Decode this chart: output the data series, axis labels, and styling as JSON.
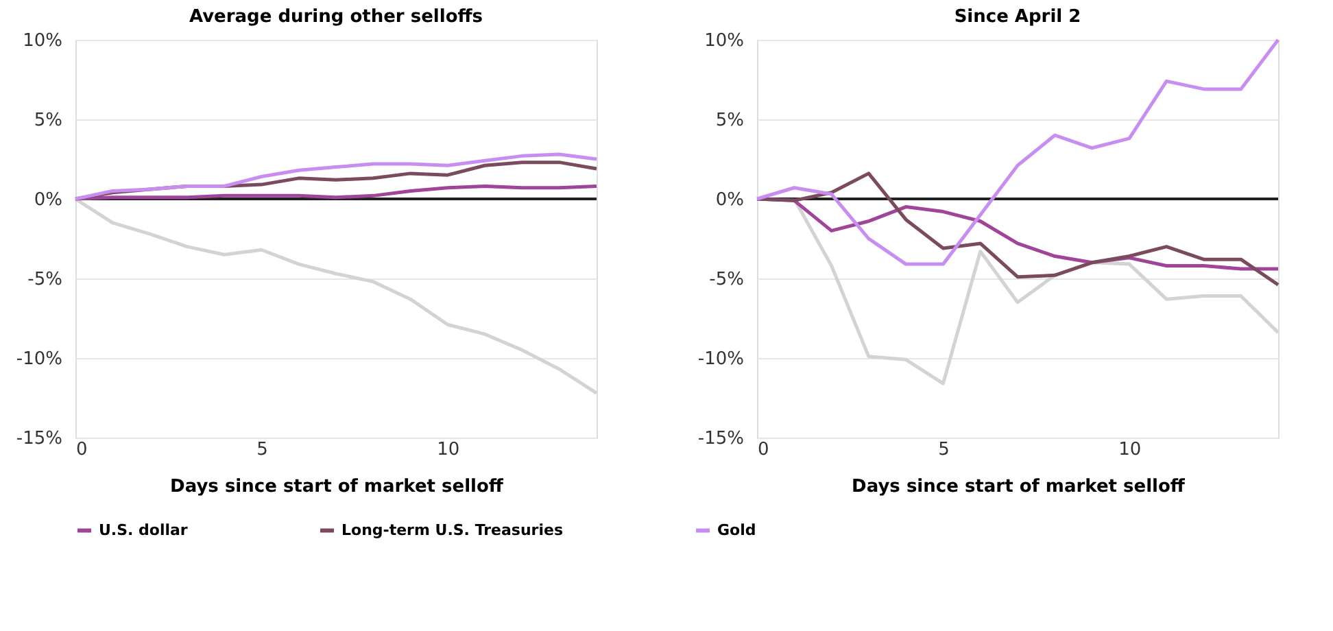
{
  "chart_data": [
    {
      "type": "line",
      "title": "Average during other selloffs",
      "xlabel": "Days since start of market selloff",
      "x": [
        0,
        1,
        2,
        3,
        4,
        5,
        6,
        7,
        8,
        9,
        10,
        11,
        12,
        13,
        14
      ],
      "xlim": [
        0,
        14
      ],
      "xticks": [
        0,
        5,
        10
      ],
      "ylim": [
        -15,
        10
      ],
      "yticks": [
        {
          "value": 10,
          "label": "10%"
        },
        {
          "value": 5,
          "label": "5%"
        },
        {
          "value": 0,
          "label": "0%"
        },
        {
          "value": -5,
          "label": "-5%"
        },
        {
          "value": -10,
          "label": "-10%"
        },
        {
          "value": -15,
          "label": "-15%"
        }
      ],
      "grid": "y",
      "legend": "bottom",
      "ref_lines": [
        {
          "axis": "y",
          "value": 0,
          "color": "#222222"
        }
      ],
      "series": [
        {
          "color": "#d3d3d3",
          "values": [
            0,
            -1.5,
            -2.2,
            -3.0,
            -3.5,
            -3.2,
            -4.1,
            -4.7,
            -5.2,
            -6.3,
            -7.9,
            -8.5,
            -9.5,
            -10.7,
            -12.2
          ]
        },
        {
          "name": "U.S. dollar",
          "color": "#a0449a",
          "values": [
            0,
            0.1,
            0.1,
            0.1,
            0.2,
            0.2,
            0.2,
            0.1,
            0.2,
            0.5,
            0.7,
            0.8,
            0.7,
            0.7,
            0.8
          ]
        },
        {
          "name": "Long-term U.S. Treasuries",
          "color": "#7a4b5e",
          "values": [
            0,
            0.4,
            0.6,
            0.8,
            0.8,
            0.9,
            1.3,
            1.2,
            1.3,
            1.6,
            1.5,
            2.1,
            2.3,
            2.3,
            1.9
          ]
        },
        {
          "name": "Gold",
          "color": "#c88df0",
          "values": [
            0,
            0.5,
            0.6,
            0.8,
            0.8,
            1.4,
            1.8,
            2.0,
            2.2,
            2.2,
            2.1,
            2.4,
            2.7,
            2.8,
            2.5
          ]
        }
      ]
    },
    {
      "type": "line",
      "title": "Since April 2",
      "xlabel": "Days since start of market selloff",
      "x": [
        0,
        1,
        2,
        3,
        4,
        5,
        6,
        7,
        8,
        9,
        10,
        11,
        12,
        13,
        14
      ],
      "xlim": [
        0,
        14
      ],
      "xticks": [
        0,
        5,
        10
      ],
      "ylim": [
        -15,
        10
      ],
      "yticks": [
        {
          "value": 10,
          "label": "10%"
        },
        {
          "value": 5,
          "label": "5%"
        },
        {
          "value": 0,
          "label": "0%"
        },
        {
          "value": -5,
          "label": "-5%"
        },
        {
          "value": -10,
          "label": "-10%"
        },
        {
          "value": -15,
          "label": "-15%"
        }
      ],
      "grid": "y",
      "legend": "bottom",
      "ref_lines": [
        {
          "axis": "y",
          "value": 0,
          "color": "#222222"
        }
      ],
      "series": [
        {
          "color": "#d3d3d3",
          "values": [
            0,
            0,
            -4.2,
            -9.9,
            -10.1,
            -11.6,
            -3.3,
            -6.5,
            -4.8,
            -4.0,
            -4.1,
            -6.3,
            -6.1,
            -6.1,
            -8.4
          ]
        },
        {
          "name": "U.S. dollar",
          "color": "#a0449a",
          "values": [
            0,
            -0.1,
            -2.0,
            -1.4,
            -0.5,
            -0.8,
            -1.4,
            -2.8,
            -3.6,
            -4.0,
            -3.7,
            -4.2,
            -4.2,
            -4.4,
            -4.4
          ]
        },
        {
          "name": "Long-term U.S. Treasuries",
          "color": "#7a4b5e",
          "values": [
            0,
            -0.1,
            0.4,
            1.6,
            -1.3,
            -3.1,
            -2.8,
            -4.9,
            -4.8,
            -4.0,
            -3.6,
            -3.0,
            -3.8,
            -3.8,
            -5.4
          ]
        },
        {
          "name": "Gold",
          "color": "#c88df0",
          "values": [
            0,
            0.7,
            0.3,
            -2.5,
            -4.1,
            -4.1,
            -1.0,
            2.1,
            4.0,
            3.2,
            3.8,
            7.4,
            6.9,
            6.9,
            10.0
          ]
        }
      ]
    }
  ]
}
